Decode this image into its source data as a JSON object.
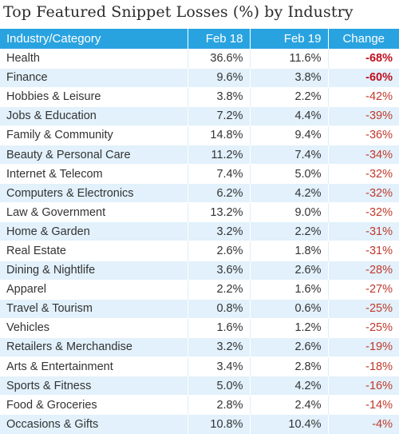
{
  "chart_data": {
    "type": "table",
    "title": "Top Featured Snippet Losses (%) by Industry",
    "columns": [
      "Industry/Category",
      "Feb 18",
      "Feb 19",
      "Change"
    ],
    "rows": [
      {
        "category": "Health",
        "feb18": "36.6%",
        "feb19": "11.6%",
        "change": "-68%"
      },
      {
        "category": "Finance",
        "feb18": "9.6%",
        "feb19": "3.8%",
        "change": "-60%"
      },
      {
        "category": "Hobbies & Leisure",
        "feb18": "3.8%",
        "feb19": "2.2%",
        "change": "-42%"
      },
      {
        "category": "Jobs & Education",
        "feb18": "7.2%",
        "feb19": "4.4%",
        "change": "-39%"
      },
      {
        "category": "Family & Community",
        "feb18": "14.8%",
        "feb19": "9.4%",
        "change": "-36%"
      },
      {
        "category": "Beauty & Personal Care",
        "feb18": "11.2%",
        "feb19": "7.4%",
        "change": "-34%"
      },
      {
        "category": "Internet & Telecom",
        "feb18": "7.4%",
        "feb19": "5.0%",
        "change": "-32%"
      },
      {
        "category": "Computers & Electronics",
        "feb18": "6.2%",
        "feb19": "4.2%",
        "change": "-32%"
      },
      {
        "category": "Law & Government",
        "feb18": "13.2%",
        "feb19": "9.0%",
        "change": "-32%"
      },
      {
        "category": "Home & Garden",
        "feb18": "3.2%",
        "feb19": "2.2%",
        "change": "-31%"
      },
      {
        "category": "Real Estate",
        "feb18": "2.6%",
        "feb19": "1.8%",
        "change": "-31%"
      },
      {
        "category": "Dining & Nightlife",
        "feb18": "3.6%",
        "feb19": "2.6%",
        "change": "-28%"
      },
      {
        "category": "Apparel",
        "feb18": "2.2%",
        "feb19": "1.6%",
        "change": "-27%"
      },
      {
        "category": "Travel & Tourism",
        "feb18": "0.8%",
        "feb19": "0.6%",
        "change": "-25%"
      },
      {
        "category": "Vehicles",
        "feb18": "1.6%",
        "feb19": "1.2%",
        "change": "-25%"
      },
      {
        "category": "Retailers & Merchandise",
        "feb18": "3.2%",
        "feb19": "2.6%",
        "change": "-19%"
      },
      {
        "category": "Arts & Entertainment",
        "feb18": "3.4%",
        "feb19": "2.8%",
        "change": "-18%"
      },
      {
        "category": "Sports & Fitness",
        "feb18": "5.0%",
        "feb19": "4.2%",
        "change": "-16%"
      },
      {
        "category": "Food & Groceries",
        "feb18": "2.8%",
        "feb19": "2.4%",
        "change": "-14%"
      },
      {
        "category": "Occasions & Gifts",
        "feb18": "10.8%",
        "feb19": "10.4%",
        "change": "-4%"
      }
    ],
    "emphasized_changes": [
      "-68%",
      "-60%"
    ],
    "colors": {
      "header_bg": "#29a3e0",
      "header_text": "#ffffff",
      "stripe": "#e2f1fb",
      "change_text": "#c0392b"
    }
  }
}
